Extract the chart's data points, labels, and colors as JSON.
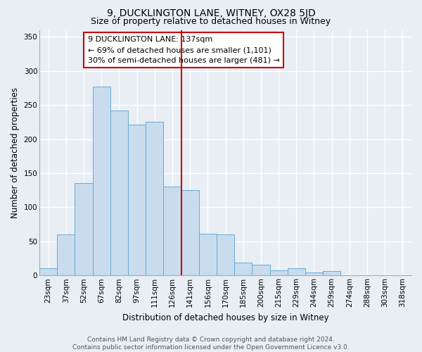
{
  "title": "9, DUCKLINGTON LANE, WITNEY, OX28 5JD",
  "subtitle": "Size of property relative to detached houses in Witney",
  "xlabel": "Distribution of detached houses by size in Witney",
  "ylabel": "Number of detached properties",
  "categories": [
    "23sqm",
    "37sqm",
    "52sqm",
    "67sqm",
    "82sqm",
    "97sqm",
    "111sqm",
    "126sqm",
    "141sqm",
    "156sqm",
    "170sqm",
    "185sqm",
    "200sqm",
    "215sqm",
    "229sqm",
    "244sqm",
    "259sqm",
    "274sqm",
    "288sqm",
    "303sqm",
    "318sqm"
  ],
  "values": [
    11,
    60,
    135,
    277,
    242,
    221,
    225,
    130,
    125,
    61,
    60,
    19,
    16,
    8,
    11,
    4,
    6,
    0,
    0,
    0,
    0
  ],
  "bar_color": "#c8dcee",
  "bar_edge_color": "#6aaad4",
  "highlight_index": 8,
  "highlight_line_color": "#cc0000",
  "annotation_title": "9 DUCKLINGTON LANE: 137sqm",
  "annotation_line1": "← 69% of detached houses are smaller (1,101)",
  "annotation_line2": "30% of semi-detached houses are larger (481) →",
  "annotation_box_facecolor": "#ffffff",
  "annotation_box_edgecolor": "#cc0000",
  "ylim": [
    0,
    360
  ],
  "yticks": [
    0,
    50,
    100,
    150,
    200,
    250,
    300,
    350
  ],
  "footer_line1": "Contains HM Land Registry data © Crown copyright and database right 2024.",
  "footer_line2": "Contains public sector information licensed under the Open Government Licence v3.0.",
  "background_color": "#e8eef4",
  "grid_color": "#ffffff",
  "title_fontsize": 10,
  "subtitle_fontsize": 9,
  "axis_label_fontsize": 8.5,
  "tick_fontsize": 7.5,
  "annotation_fontsize": 8,
  "footer_fontsize": 6.5
}
